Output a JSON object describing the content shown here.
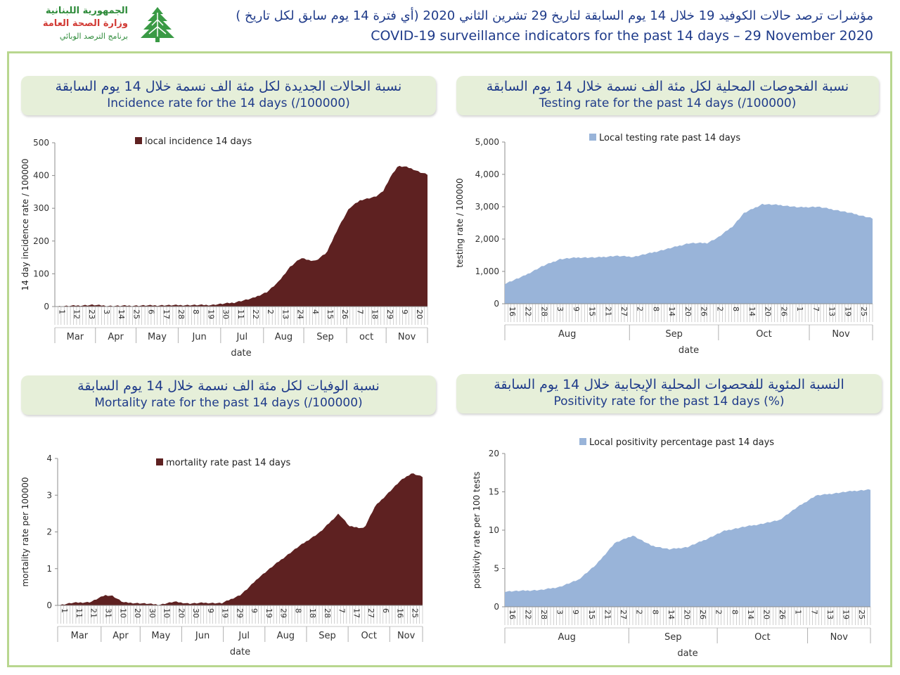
{
  "logo": {
    "line1": "الجمهورية اللبنانية",
    "line2": "وزارة الصحة العامة",
    "line3": "برنامج الترصد الوبائي",
    "emblem": "cedar-tree-icon"
  },
  "header": {
    "arabic": "مؤشرات ترصد حالات الكوفيد 19 خلال 14 يوم السابقة لتاريخ 29 تشرين الثاني 2020 (أي فترة 14 يوم سابق لكل تاريخ )",
    "english": "COVID-19 surveillance indicators for the past 14 days – 29 November 2020"
  },
  "panels": {
    "incidence": {
      "ar": "نسبة الحالات الجديدة لكل مئة الف نسمة خلال 14 يوم السابقة",
      "en": "Incidence rate for the 14 days  (/100000)"
    },
    "testing": {
      "ar": "نسبة الفحوصات المحلية لكل مئة الف نسمة خلال 14 يوم السابقة",
      "en": "Testing rate for the past 14 days (/100000)"
    },
    "mortality": {
      "ar": "نسبة الوفيات لكل مئة الف نسمة خلال 14 يوم السابقة",
      "en": "Mortality rate for the past 14 days (/100000)"
    },
    "positivity": {
      "ar": "النسبة المئوية للفحصوات المحلية الإيجابية خلال 14 يوم السابقة",
      "en": "Positivity rate for the past 14 days (%)"
    }
  },
  "colors": {
    "maroon": "#5e2121",
    "blue": "#99b4d9",
    "frame": "#b9d78f",
    "pill": "#e6efd9",
    "title_text": "#1f3b8a"
  },
  "chart_data": [
    {
      "id": "incidence",
      "type": "area",
      "series": [
        {
          "name": "local incidence 14 days",
          "color": "#5e2121"
        }
      ],
      "ylabel": "14 day incidence rate / 100000",
      "xlabel": "date",
      "ylim": [
        0,
        500
      ],
      "yticks": [
        "0",
        "100",
        "200",
        "300",
        "400",
        "500"
      ],
      "day_ticks": [
        "1",
        "12",
        "23",
        "3",
        "14",
        "25",
        "6",
        "17",
        "28",
        "8",
        "19",
        "30",
        "11",
        "22",
        "2",
        "13",
        "24",
        "4",
        "15",
        "26",
        "7",
        "18",
        "29",
        "9",
        "20"
      ],
      "months": [
        "Mar",
        "Apr",
        "May",
        "Jun",
        "Jul",
        "Aug",
        "Sep",
        "oct",
        "Nov"
      ],
      "month_bounds": [
        0,
        0.109,
        0.218,
        0.331,
        0.445,
        0.56,
        0.668,
        0.783,
        0.889,
        1
      ],
      "x": [
        0,
        0.1,
        0.15,
        0.3,
        0.42,
        0.48,
        0.53,
        0.57,
        0.6,
        0.63,
        0.66,
        0.68,
        0.7,
        0.73,
        0.76,
        0.79,
        0.82,
        0.84,
        0.86,
        0.88,
        0.9,
        0.92,
        0.94,
        0.96,
        0.98,
        1
      ],
      "values": [
        0,
        5,
        2,
        4,
        5,
        12,
        25,
        45,
        75,
        120,
        148,
        142,
        140,
        165,
        240,
        300,
        325,
        330,
        335,
        350,
        395,
        428,
        427,
        420,
        410,
        403
      ]
    },
    {
      "id": "testing",
      "type": "area",
      "series": [
        {
          "name": "Local testing rate past 14 days",
          "color": "#99b4d9"
        }
      ],
      "ylabel": "testing rate / 100000",
      "xlabel": "date",
      "ylim": [
        0,
        5000
      ],
      "yticks": [
        "0",
        "1,000",
        "2,000",
        "3,000",
        "4,000",
        "5,000"
      ],
      "day_ticks": [
        "16",
        "22",
        "28",
        "3",
        "9",
        "15",
        "21",
        "27",
        "2",
        "8",
        "14",
        "20",
        "26",
        "2",
        "8",
        "14",
        "20",
        "26",
        "1",
        "7",
        "13",
        "19",
        "25"
      ],
      "months": [
        "Aug",
        "Sep",
        "Oct",
        "Nov"
      ],
      "month_bounds": [
        0,
        0.339,
        0.581,
        0.828,
        1
      ],
      "x": [
        0,
        0.05,
        0.1,
        0.15,
        0.2,
        0.25,
        0.3,
        0.35,
        0.4,
        0.45,
        0.5,
        0.55,
        0.58,
        0.62,
        0.65,
        0.7,
        0.75,
        0.8,
        0.85,
        0.9,
        0.95,
        1
      ],
      "values": [
        620,
        850,
        1150,
        1380,
        1430,
        1430,
        1480,
        1450,
        1580,
        1720,
        1870,
        1880,
        2050,
        2400,
        2800,
        3080,
        3050,
        2980,
        3000,
        2900,
        2780,
        2640
      ]
    },
    {
      "id": "mortality",
      "type": "area",
      "series": [
        {
          "name": "mortality rate past 14 days",
          "color": "#5e2121"
        }
      ],
      "ylabel": "mortality rate per 100000",
      "xlabel": "date",
      "ylim": [
        0,
        4
      ],
      "yticks": [
        "0",
        "1",
        "2",
        "3",
        "4"
      ],
      "day_ticks": [
        "1",
        "11",
        "21",
        "31",
        "10",
        "20",
        "30",
        "10",
        "20",
        "30",
        "9",
        "19",
        "29",
        "9",
        "19",
        "29",
        "8",
        "18",
        "28",
        "7",
        "17",
        "27",
        "6",
        "16",
        "25"
      ],
      "months": [
        "Mar",
        "Apr",
        "May",
        "Jun",
        "Jul",
        "Aug",
        "Sep",
        "Oct",
        "Nov"
      ],
      "month_bounds": [
        0,
        0.119,
        0.226,
        0.34,
        0.454,
        0.568,
        0.682,
        0.796,
        0.91,
        1
      ],
      "x": [
        0,
        0.04,
        0.09,
        0.13,
        0.15,
        0.18,
        0.2,
        0.24,
        0.28,
        0.32,
        0.36,
        0.4,
        0.45,
        0.5,
        0.52,
        0.55,
        0.6,
        0.66,
        0.72,
        0.77,
        0.8,
        0.84,
        0.87,
        0.9,
        0.94,
        0.97,
        1
      ],
      "values": [
        0,
        0.07,
        0.09,
        0.28,
        0.26,
        0.08,
        0.07,
        0.05,
        0.02,
        0.1,
        0.05,
        0.07,
        0.06,
        0.28,
        0.45,
        0.75,
        1.15,
        1.6,
        2.0,
        2.5,
        2.15,
        2.1,
        2.7,
        3.0,
        3.4,
        3.6,
        3.5
      ]
    },
    {
      "id": "positivity",
      "type": "area",
      "series": [
        {
          "name": "Local positivity percentage past 14 days",
          "color": "#99b4d9"
        }
      ],
      "ylabel": "positivity rate per 100 tests",
      "xlabel": "date",
      "ylim": [
        0,
        20
      ],
      "yticks": [
        "0",
        "5",
        "10",
        "15",
        "20"
      ],
      "day_ticks": [
        "16",
        "22",
        "28",
        "3",
        "9",
        "15",
        "21",
        "27",
        "2",
        "8",
        "14",
        "20",
        "26",
        "2",
        "8",
        "14",
        "20",
        "26",
        "1",
        "7",
        "13",
        "19",
        "25"
      ],
      "months": [
        "Aug",
        "Sep",
        "Oct",
        "Nov"
      ],
      "month_bounds": [
        0,
        0.339,
        0.581,
        0.828,
        1
      ],
      "x": [
        0,
        0.05,
        0.1,
        0.15,
        0.2,
        0.25,
        0.3,
        0.35,
        0.4,
        0.45,
        0.5,
        0.55,
        0.6,
        0.65,
        0.7,
        0.75,
        0.8,
        0.85,
        0.9,
        0.95,
        1
      ],
      "values": [
        2.0,
        2.1,
        2.2,
        2.6,
        3.5,
        5.5,
        8.3,
        9.3,
        8.0,
        7.5,
        7.8,
        8.8,
        9.9,
        10.4,
        10.8,
        11.3,
        13.0,
        14.5,
        14.8,
        15.1,
        15.3
      ]
    }
  ]
}
